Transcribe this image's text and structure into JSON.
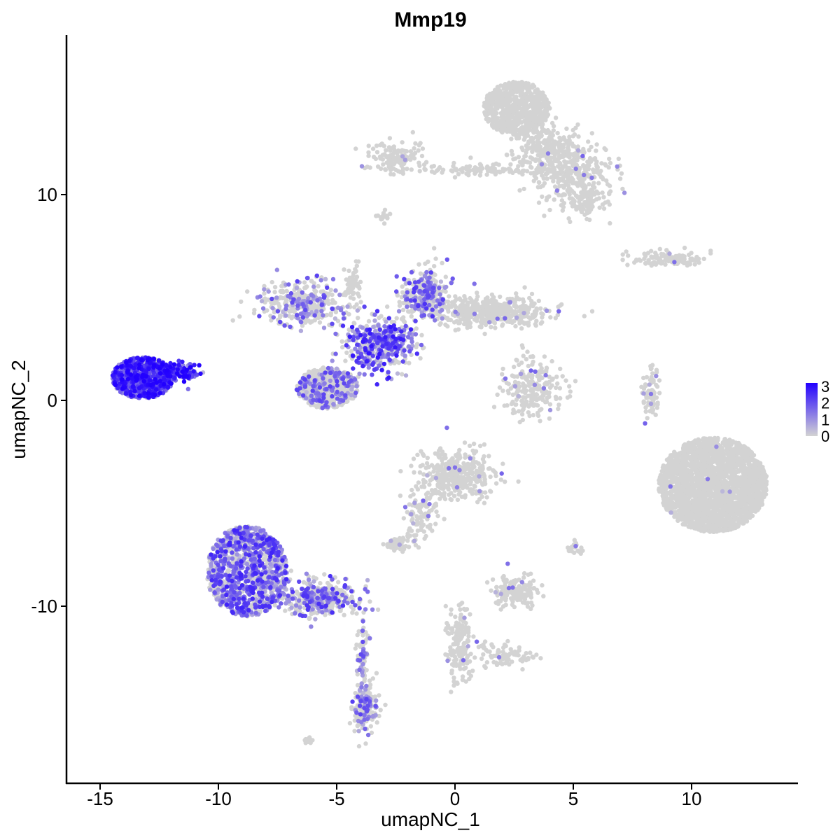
{
  "chart_data": {
    "type": "scatter",
    "title": "Mmp19",
    "xlabel": "umapNC_1",
    "ylabel": "umapNC_2",
    "xlim": [
      -16.5,
      14.5
    ],
    "ylim": [
      -18.5,
      17.8
    ],
    "xticks": [
      -15,
      -10,
      -5,
      0,
      5,
      10
    ],
    "yticks": [
      -10,
      0,
      10
    ],
    "xtick_labels": [
      "-15",
      "-10",
      "-5",
      "0",
      "5",
      "10"
    ],
    "ytick_labels": [
      "-10",
      "0",
      "10"
    ],
    "grid": false,
    "legend": {
      "position": "right",
      "title": "",
      "min": 0,
      "max": 3.2,
      "ticks": [
        0,
        1,
        2,
        3
      ],
      "tick_labels": [
        "0",
        "1",
        "2",
        "3"
      ],
      "low_color": "#d3d3d3",
      "high_color": "#2200ff"
    },
    "clusters": [
      {
        "name": "top-arm",
        "cx": 2.6,
        "cy": 14.2,
        "rx": 1.4,
        "ry": 1.3,
        "n": 650,
        "expr": 0,
        "blob": true
      },
      {
        "name": "top-arm-lower",
        "cx": 3.8,
        "cy": 12.3,
        "rx": 1.3,
        "ry": 1.0,
        "n": 260,
        "expr": 0
      },
      {
        "name": "top-right-lobe",
        "cx": 5.0,
        "cy": 11.0,
        "rx": 1.5,
        "ry": 1.2,
        "n": 300,
        "expr": 0.02
      },
      {
        "name": "top-right-tail",
        "cx": 5.6,
        "cy": 9.7,
        "rx": 0.7,
        "ry": 0.6,
        "n": 90,
        "expr": 0
      },
      {
        "name": "top-left-arm",
        "cx": -2.5,
        "cy": 11.8,
        "rx": 0.9,
        "ry": 0.6,
        "n": 120,
        "expr": 0.02
      },
      {
        "name": "top-bridge",
        "cx": 0.8,
        "cy": 11.2,
        "rx": 2.5,
        "ry": 0.2,
        "n": 110,
        "expr": 0
      },
      {
        "name": "small-top",
        "cx": -3.0,
        "cy": 8.9,
        "rx": 0.3,
        "ry": 0.3,
        "n": 14,
        "expr": 0
      },
      {
        "name": "right-small",
        "cx": 9.0,
        "cy": 6.9,
        "rx": 1.2,
        "ry": 0.3,
        "n": 120,
        "expr": 0.02
      },
      {
        "name": "left-blob",
        "cx": -13.2,
        "cy": 1.1,
        "rx": 1.3,
        "ry": 1.0,
        "n": 900,
        "expr": 0.6,
        "blob": true
      },
      {
        "name": "left-blob-tail",
        "cx": -11.5,
        "cy": 1.3,
        "rx": 0.6,
        "ry": 0.4,
        "n": 90,
        "expr": 0.75
      },
      {
        "name": "center-lower-lobe",
        "cx": -5.4,
        "cy": 0.6,
        "rx": 1.3,
        "ry": 1.0,
        "n": 520,
        "expr": 0.2,
        "blob": true
      },
      {
        "name": "center-core",
        "cx": -3.2,
        "cy": 2.7,
        "rx": 1.2,
        "ry": 1.1,
        "n": 440,
        "expr": 0.45
      },
      {
        "name": "center-upper-left",
        "cx": -6.4,
        "cy": 4.7,
        "rx": 1.5,
        "ry": 0.9,
        "n": 360,
        "expr": 0.2
      },
      {
        "name": "center-upper-right",
        "cx": -1.3,
        "cy": 5.1,
        "rx": 0.8,
        "ry": 1.0,
        "n": 320,
        "expr": 0.28
      },
      {
        "name": "center-right-arm",
        "cx": 1.5,
        "cy": 4.3,
        "rx": 2.0,
        "ry": 0.6,
        "n": 480,
        "expr": 0.02
      },
      {
        "name": "center-stem",
        "cx": -4.3,
        "cy": 5.5,
        "rx": 0.3,
        "ry": 0.9,
        "n": 55,
        "expr": 0
      },
      {
        "name": "mid-right-small",
        "cx": 3.3,
        "cy": 0.5,
        "rx": 1.0,
        "ry": 1.2,
        "n": 220,
        "expr": 0.02
      },
      {
        "name": "mid-right-stem",
        "cx": 8.3,
        "cy": 0.3,
        "rx": 0.3,
        "ry": 1.0,
        "n": 70,
        "expr": 0.02
      },
      {
        "name": "big-right-blob",
        "cx": 10.9,
        "cy": -4.1,
        "rx": 2.3,
        "ry": 2.3,
        "n": 2400,
        "expr": 0.003,
        "blob": true
      },
      {
        "name": "center-mid-blob",
        "cx": 0.1,
        "cy": -3.6,
        "rx": 1.3,
        "ry": 1.0,
        "n": 380,
        "expr": 0.03
      },
      {
        "name": "center-mid-arm",
        "cx": -1.4,
        "cy": -5.7,
        "rx": 0.6,
        "ry": 1.1,
        "n": 90,
        "expr": 0.02
      },
      {
        "name": "center-mid-small",
        "cx": -2.4,
        "cy": -6.9,
        "rx": 0.5,
        "ry": 0.3,
        "n": 60,
        "expr": 0.05
      },
      {
        "name": "bottom-left-blob",
        "cx": -8.8,
        "cy": -8.3,
        "rx": 1.7,
        "ry": 2.2,
        "n": 1150,
        "expr": 0.38,
        "blob": true
      },
      {
        "name": "bottom-left-arm",
        "cx": -5.8,
        "cy": -9.6,
        "rx": 1.4,
        "ry": 0.7,
        "n": 380,
        "expr": 0.3
      },
      {
        "name": "bottom-left-tail",
        "cx": -3.8,
        "cy": -15.0,
        "rx": 0.4,
        "ry": 1.0,
        "n": 170,
        "expr": 0.2
      },
      {
        "name": "bottom-left-strand",
        "cx": -3.9,
        "cy": -12.4,
        "rx": 0.2,
        "ry": 1.4,
        "n": 70,
        "expr": 0.2
      },
      {
        "name": "bottom-mid-stem",
        "cx": 0.2,
        "cy": -11.8,
        "rx": 0.5,
        "ry": 1.6,
        "n": 160,
        "expr": 0.02
      },
      {
        "name": "bottom-mid-arm",
        "cx": 2.2,
        "cy": -12.4,
        "rx": 1.0,
        "ry": 0.5,
        "n": 80,
        "expr": 0.02
      },
      {
        "name": "bottom-right-small",
        "cx": 2.5,
        "cy": -9.3,
        "rx": 0.8,
        "ry": 0.6,
        "n": 150,
        "expr": 0.03
      },
      {
        "name": "tiny-bottom",
        "cx": -6.2,
        "cy": -16.5,
        "rx": 0.2,
        "ry": 0.15,
        "n": 10,
        "expr": 0
      },
      {
        "name": "tiny-right",
        "cx": 5.0,
        "cy": -7.2,
        "rx": 0.3,
        "ry": 0.3,
        "n": 20,
        "expr": 0.05
      }
    ]
  }
}
